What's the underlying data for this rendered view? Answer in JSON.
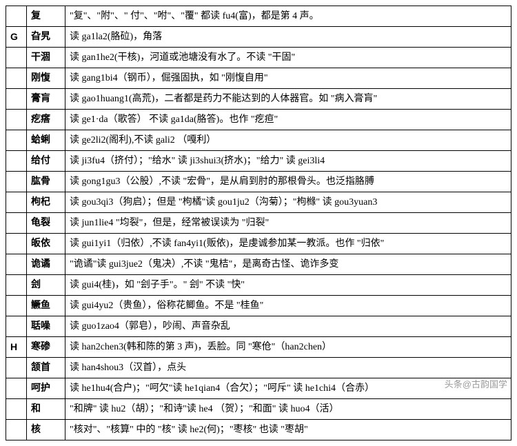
{
  "rows": [
    {
      "letter": "",
      "word": "复",
      "desc": "\"复\"、\"附\"、\" 付\"、\"咐\"、\"覆\" 都读 fu4(富)，都是第 4 声。"
    },
    {
      "letter": "G",
      "word": "旮旯",
      "desc": "读 ga1la2(胳砬)，角落"
    },
    {
      "letter": "",
      "word": "干涸",
      "desc": "读 gan1he2(干核)，河道或池塘没有水了。不读 \"干固\""
    },
    {
      "letter": "",
      "word": "刚愎",
      "desc": "读 gang1bi4（钢币），倔强固执，如 \"刚愎自用\""
    },
    {
      "letter": "",
      "word": "膏肓",
      "desc": "读 gao1huang1(高荒)，二者都是药力不能达到的人体器官。如 \"病入膏肓\""
    },
    {
      "letter": "",
      "word": "疙瘩",
      "desc": "读 ge1·da（歌答） 不读 ga1da(胳答)。也作 \"疙疸\""
    },
    {
      "letter": "",
      "word": "蛤蜊",
      "desc": "读 ge2li2(阁利),不读 gali2 （嘎利）"
    },
    {
      "letter": "",
      "word": "给付",
      "desc": "读 ji3fu4（挤付）；\"给水\" 读 ji3shui3(挤水)；\"给力\" 读 gei3li4"
    },
    {
      "letter": "",
      "word": "肱骨",
      "desc": "读 gong1gu3（公股）,不读 \"宏骨\"，是从肩到肘的那根骨头。也泛指胳膊"
    },
    {
      "letter": "",
      "word": "枸杞",
      "desc": "读 gou3qi3（狗启）；但是 \"枸橘\"读 gou1ju2（沟菊）；\"枸橼\" 读 gou3yuan3"
    },
    {
      "letter": "",
      "word": "龟裂",
      "desc": "读 jun1lie4 \"均裂\"，但是，经常被误读为 \"归裂\""
    },
    {
      "letter": "",
      "word": "皈依",
      "desc": "读 gui1yi1（归依）,不读 fan4yi1(贩依)，是虔诚参加某一教派。也作 \"归依\""
    },
    {
      "letter": "",
      "word": "诡谲",
      "desc": "\"诡谲\"读 gui3jue2（鬼决）,不读 \"鬼桔\"，是离奇古怪、诡诈多变"
    },
    {
      "letter": "",
      "word": "刽",
      "desc": "读 gui4(桂)，如 \"刽子手\"。\" 刽\" 不读 \"快\""
    },
    {
      "letter": "",
      "word": "鳜鱼",
      "desc": "读 gui4yu2（贵鱼），俗称花鲫鱼。不是 \"桂鱼\""
    },
    {
      "letter": "",
      "word": "聒噪",
      "desc": "读 guo1zao4（郭皂），吵闹、声音杂乱"
    },
    {
      "letter": "H",
      "word": "寒碜",
      "desc": "读 han2chen3(韩和陈的第 3 声)，丢脸。同 \"寒伧\"（han2chen）"
    },
    {
      "letter": "",
      "word": "颔首",
      "desc": "读 han4shou3（汉首），点头"
    },
    {
      "letter": "",
      "word": "呵护",
      "desc": "读 he1hu4(合户)；\"呵欠\"读 he1qian4（合欠）；\"呵斥\" 读 he1chi4（合赤）"
    },
    {
      "letter": "",
      "word": "和",
      "desc": "\"和牌\" 读 hu2（胡）；\"和诗\"读 he4 （贺）；\"和面\" 读 huo4（活）"
    },
    {
      "letter": "",
      "word": "核",
      "desc": "\"核对\"、\"核算\" 中的 \"核\" 读 he2(何)；\"枣核\" 也读 \"枣胡\""
    }
  ],
  "watermark": "头条@古韵国学",
  "colors": {
    "border": "#000000",
    "text": "#000000",
    "bg": "#ffffff",
    "watermark": "#9a9a9a"
  },
  "font_sizes": {
    "cell": 14,
    "watermark": 13
  }
}
